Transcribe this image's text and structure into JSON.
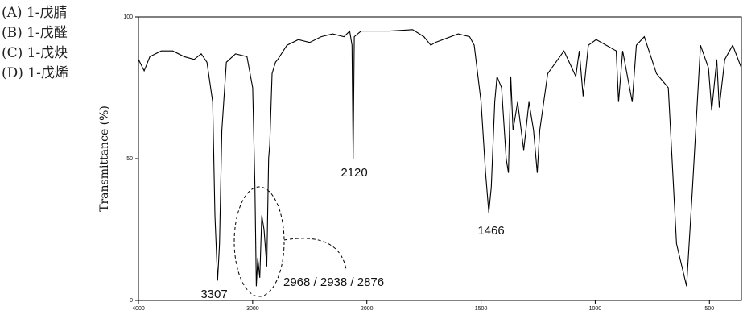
{
  "options": [
    "(A) 1-戊腈",
    "(B) 1-戊醛",
    "(C) 1-戊炔",
    "(D) 1-戊烯"
  ],
  "chart_data": {
    "type": "line",
    "ylabel": "Transmittance (%)",
    "xlim": [
      4000,
      360
    ],
    "xbreak": 2000,
    "ylim": [
      0,
      100
    ],
    "xticks": [
      4000,
      3000,
      2000,
      1500,
      1000,
      500
    ],
    "yticks": [
      0,
      50,
      100
    ],
    "series": [
      {
        "color": "#000000",
        "x": [
          4000,
          3950,
          3900,
          3800,
          3700,
          3600,
          3512,
          3450,
          3400,
          3350,
          3330,
          3307,
          3290,
          3270,
          3230,
          3150,
          3050,
          3000,
          2980,
          2968,
          2955,
          2938,
          2920,
          2900,
          2876,
          2860,
          2850,
          2830,
          2800,
          2780,
          2700,
          2600,
          2500,
          2400,
          2300,
          2200,
          2150,
          2130,
          2120,
          2110,
          2050,
          1900,
          1800,
          1750,
          1720,
          1700,
          1600,
          1550,
          1530,
          1500,
          1480,
          1466,
          1455,
          1440,
          1430,
          1410,
          1390,
          1380,
          1370,
          1360,
          1340,
          1313,
          1290,
          1270,
          1254,
          1243,
          1208,
          1137,
          1085,
          1070,
          1053,
          1030,
          996,
          908,
          898,
          880,
          838,
          820,
          785,
          732,
          680,
          644,
          600,
          574,
          539,
          504,
          490,
          468,
          457,
          433,
          398,
          360
        ],
        "values": [
          85,
          81,
          86,
          88,
          88,
          86,
          85,
          87,
          84,
          70,
          30,
          7,
          20,
          60,
          84,
          87,
          86,
          75,
          40,
          5,
          15,
          8,
          30,
          25,
          12,
          50,
          55,
          80,
          84,
          85,
          90,
          92,
          91,
          93,
          94,
          93,
          95,
          90,
          50,
          93,
          95,
          95,
          95.5,
          93,
          90,
          91,
          94,
          93,
          90,
          70,
          45,
          31,
          40,
          70,
          79,
          75,
          50,
          45,
          79,
          60,
          70,
          53,
          70,
          60,
          45,
          60,
          80,
          88,
          79,
          88,
          72,
          90,
          92,
          88,
          70,
          88,
          70,
          90,
          93,
          80,
          75,
          20,
          5,
          40,
          90,
          82,
          67,
          85,
          68,
          85,
          90,
          82
        ]
      }
    ],
    "annotations": [
      "3307",
      "2120",
      "1466",
      "2968 / 2938 / 2876"
    ]
  }
}
